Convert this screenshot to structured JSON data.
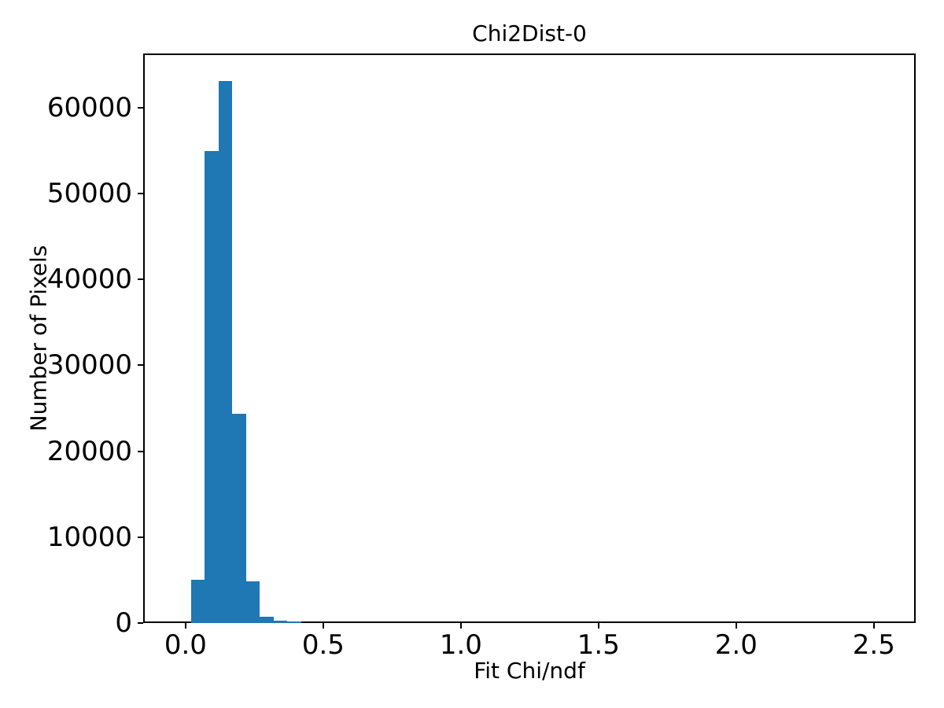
{
  "chart_data": {
    "type": "bar",
    "subtype": "histogram",
    "title": "Chi2Dist-0",
    "xlabel": "Fit Chi/ndf",
    "ylabel": "Number of Pixels",
    "bar_color": "#1f77b4",
    "axis_color": "#000000",
    "background_color": "#ffffff",
    "grid": false,
    "legend": null,
    "bin_edges": [
      0.02,
      0.07,
      0.12,
      0.17,
      0.22,
      0.27,
      0.32,
      0.37,
      0.42
    ],
    "values": [
      5000,
      55000,
      63100,
      24400,
      4900,
      750,
      250,
      150
    ],
    "xlim": [
      -0.154,
      2.652
    ],
    "ylim": [
      0,
      66310
    ],
    "xticks": [
      0.0,
      0.5,
      1.0,
      1.5,
      2.0,
      2.5
    ],
    "xtick_labels": [
      "0.0",
      "0.5",
      "1.0",
      "1.5",
      "2.0",
      "2.5"
    ],
    "yticks": [
      0,
      10000,
      20000,
      30000,
      40000,
      50000,
      60000
    ],
    "ytick_labels": [
      "0",
      "10000",
      "20000",
      "30000",
      "40000",
      "50000",
      "60000"
    ]
  }
}
